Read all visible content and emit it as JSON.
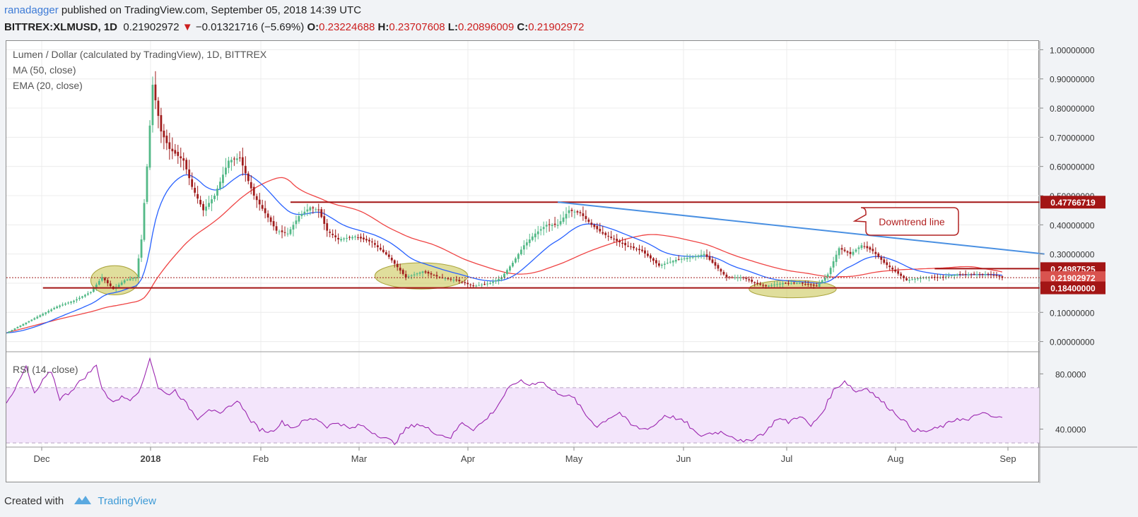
{
  "header": {
    "user": "ranadagger",
    "published_text": " published on TradingView.com, September 05, 2018 14:39 UTC",
    "symbol": "BITTREX:XLMUSD, 1D",
    "last": "0.21902972",
    "down_arrow": "▼",
    "change": "−0.01321716 (−5.69%)",
    "o_label": "O:",
    "o_value": "0.23224688",
    "h_label": "H:",
    "h_value": "0.23707608",
    "l_label": "L:",
    "l_value": "0.20896009",
    "c_label": "C:",
    "c_value": "0.21902972"
  },
  "legend": {
    "title": "Lumen / Dollar (calculated by TradingView), 1D, BITTREX",
    "ma": "MA (50, close)",
    "ema": "EMA (20, close)",
    "rsi": "RSI (14, close)"
  },
  "footer": {
    "created_with": "Created with",
    "brand": "TradingView"
  },
  "colors": {
    "up": "#53b987",
    "down": "#a01c1c",
    "ma50": "#ef4444",
    "ema20": "#2962ff",
    "rsi": "#9c27b0",
    "level": "#a31515",
    "downtrend": "#4a90e2",
    "zone": "#c7c24a"
  },
  "chart_data": [
    {
      "type": "candlestick",
      "title": "Lumen / Dollar (calculated by TradingView), 1D, BITTREX",
      "x_ticks": [
        "Dec",
        "2018",
        "Feb",
        "Mar",
        "Apr",
        "May",
        "Jun",
        "Jul",
        "Aug",
        "Sep"
      ],
      "y_ticks": [
        "0.00000000",
        "0.10000000",
        "0.20000000",
        "0.30000000",
        "0.40000000",
        "0.50000000",
        "0.60000000",
        "0.70000000",
        "0.80000000",
        "0.90000000",
        "1.00000000"
      ],
      "ylim": [
        -0.03,
        1.03
      ],
      "grid": true,
      "anchors": [
        [
          0,
          0.03
        ],
        [
          6,
          0.06
        ],
        [
          12,
          0.09
        ],
        [
          18,
          0.12
        ],
        [
          24,
          0.14
        ],
        [
          30,
          0.17
        ],
        [
          34,
          0.22
        ],
        [
          38,
          0.18
        ],
        [
          42,
          0.21
        ],
        [
          46,
          0.22
        ],
        [
          48,
          0.35
        ],
        [
          50,
          0.6
        ],
        [
          52,
          0.88
        ],
        [
          55,
          0.72
        ],
        [
          58,
          0.66
        ],
        [
          63,
          0.62
        ],
        [
          66,
          0.53
        ],
        [
          70,
          0.45
        ],
        [
          74,
          0.5
        ],
        [
          79,
          0.62
        ],
        [
          83,
          0.63
        ],
        [
          86,
          0.55
        ],
        [
          88,
          0.5
        ],
        [
          92,
          0.44
        ],
        [
          96,
          0.38
        ],
        [
          100,
          0.37
        ],
        [
          104,
          0.43
        ],
        [
          108,
          0.46
        ],
        [
          111,
          0.45
        ],
        [
          114,
          0.38
        ],
        [
          118,
          0.35
        ],
        [
          124,
          0.36
        ],
        [
          130,
          0.34
        ],
        [
          136,
          0.29
        ],
        [
          142,
          0.22
        ],
        [
          148,
          0.24
        ],
        [
          154,
          0.22
        ],
        [
          160,
          0.21
        ],
        [
          166,
          0.19
        ],
        [
          172,
          0.2
        ],
        [
          176,
          0.22
        ],
        [
          180,
          0.27
        ],
        [
          184,
          0.33
        ],
        [
          188,
          0.37
        ],
        [
          192,
          0.4
        ],
        [
          196,
          0.4
        ],
        [
          200,
          0.45
        ],
        [
          204,
          0.44
        ],
        [
          208,
          0.4
        ],
        [
          212,
          0.37
        ],
        [
          216,
          0.35
        ],
        [
          220,
          0.33
        ],
        [
          226,
          0.31
        ],
        [
          232,
          0.26
        ],
        [
          238,
          0.28
        ],
        [
          244,
          0.29
        ],
        [
          248,
          0.3
        ],
        [
          252,
          0.26
        ],
        [
          256,
          0.22
        ],
        [
          262,
          0.22
        ],
        [
          266,
          0.2
        ],
        [
          270,
          0.19
        ],
        [
          276,
          0.2
        ],
        [
          282,
          0.2
        ],
        [
          288,
          0.19
        ],
        [
          292,
          0.23
        ],
        [
          296,
          0.32
        ],
        [
          300,
          0.3
        ],
        [
          304,
          0.33
        ],
        [
          308,
          0.31
        ],
        [
          312,
          0.27
        ],
        [
          316,
          0.24
        ],
        [
          320,
          0.21
        ],
        [
          326,
          0.22
        ],
        [
          332,
          0.22
        ],
        [
          338,
          0.23
        ],
        [
          344,
          0.23
        ],
        [
          350,
          0.23
        ],
        [
          354,
          0.22
        ]
      ],
      "last_close": 0.21902972,
      "indicators": [
        "MA (50, close)",
        "EMA (20, close)"
      ],
      "levels": [
        {
          "label": "0.47766719",
          "value": 0.47766719
        },
        {
          "label": "0.24987525",
          "value": 0.24987525
        },
        {
          "label": "0.21902972",
          "value": 0.21902972
        },
        {
          "label": "0.18400000",
          "value": 0.184
        }
      ],
      "downtrend_line": {
        "from": [
          196,
          0.478
        ],
        "to": [
          369,
          0.3
        ]
      },
      "annotations": [
        "Downtrend line"
      ],
      "zones": [
        {
          "from": 30,
          "to": 47,
          "low": 0.16,
          "high": 0.26
        },
        {
          "from": 131,
          "to": 164,
          "low": 0.18,
          "high": 0.27
        },
        {
          "from": 264,
          "to": 295,
          "low": 0.15,
          "high": 0.21
        }
      ]
    },
    {
      "type": "line",
      "title": "RSI (14, close)",
      "y_ticks": [
        "40.0000",
        "80.0000"
      ],
      "ylim": [
        27,
        95
      ],
      "bands": [
        30,
        70
      ],
      "anchors": [
        [
          0,
          60
        ],
        [
          4,
          72
        ],
        [
          7,
          85
        ],
        [
          10,
          65
        ],
        [
          13,
          75
        ],
        [
          16,
          82
        ],
        [
          19,
          62
        ],
        [
          22,
          66
        ],
        [
          26,
          74
        ],
        [
          29,
          80
        ],
        [
          32,
          86
        ],
        [
          34,
          70
        ],
        [
          37,
          60
        ],
        [
          41,
          63
        ],
        [
          44,
          62
        ],
        [
          48,
          70
        ],
        [
          51,
          92
        ],
        [
          54,
          70
        ],
        [
          57,
          65
        ],
        [
          60,
          68
        ],
        [
          64,
          58
        ],
        [
          68,
          48
        ],
        [
          72,
          55
        ],
        [
          76,
          50
        ],
        [
          80,
          58
        ],
        [
          83,
          60
        ],
        [
          86,
          48
        ],
        [
          90,
          40
        ],
        [
          94,
          38
        ],
        [
          98,
          45
        ],
        [
          102,
          41
        ],
        [
          106,
          46
        ],
        [
          110,
          48
        ],
        [
          114,
          42
        ],
        [
          118,
          45
        ],
        [
          122,
          40
        ],
        [
          126,
          43
        ],
        [
          130,
          38
        ],
        [
          134,
          34
        ],
        [
          138,
          30
        ],
        [
          142,
          40
        ],
        [
          146,
          44
        ],
        [
          150,
          40
        ],
        [
          154,
          36
        ],
        [
          158,
          34
        ],
        [
          162,
          45
        ],
        [
          166,
          40
        ],
        [
          170,
          46
        ],
        [
          174,
          55
        ],
        [
          178,
          68
        ],
        [
          182,
          75
        ],
        [
          186,
          72
        ],
        [
          190,
          75
        ],
        [
          194,
          68
        ],
        [
          198,
          65
        ],
        [
          202,
          62
        ],
        [
          206,
          50
        ],
        [
          210,
          42
        ],
        [
          214,
          48
        ],
        [
          218,
          52
        ],
        [
          222,
          43
        ],
        [
          226,
          40
        ],
        [
          230,
          42
        ],
        [
          234,
          50
        ],
        [
          238,
          48
        ],
        [
          242,
          44
        ],
        [
          246,
          35
        ],
        [
          250,
          37
        ],
        [
          254,
          38
        ],
        [
          258,
          35
        ],
        [
          262,
          30
        ],
        [
          266,
          34
        ],
        [
          270,
          38
        ],
        [
          274,
          48
        ],
        [
          278,
          45
        ],
        [
          282,
          50
        ],
        [
          286,
          42
        ],
        [
          290,
          52
        ],
        [
          294,
          68
        ],
        [
          298,
          75
        ],
        [
          302,
          67
        ],
        [
          306,
          70
        ],
        [
          310,
          62
        ],
        [
          314,
          55
        ],
        [
          318,
          48
        ],
        [
          322,
          40
        ],
        [
          326,
          38
        ],
        [
          330,
          40
        ],
        [
          334,
          43
        ],
        [
          338,
          48
        ],
        [
          342,
          46
        ],
        [
          346,
          52
        ],
        [
          350,
          49
        ],
        [
          354,
          48
        ]
      ]
    }
  ]
}
